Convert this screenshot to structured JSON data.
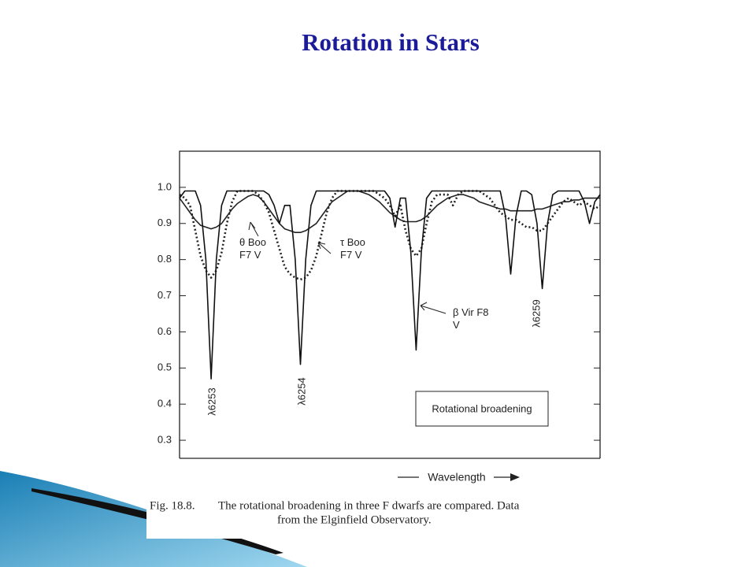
{
  "slide": {
    "title": "Rotation in Stars"
  },
  "chart_data": {
    "type": "line",
    "categories": [
      null,
      null,
      null,
      null,
      null,
      null,
      null,
      null,
      null,
      null,
      null,
      null,
      null,
      null,
      null,
      null,
      null,
      null,
      null,
      null,
      null,
      null,
      null,
      null,
      null,
      null,
      null,
      null,
      null,
      null,
      null,
      null,
      null,
      null,
      null,
      null,
      null,
      null,
      null,
      null,
      null,
      null,
      null,
      null,
      null,
      null,
      null,
      null,
      null,
      null,
      null,
      null,
      null,
      null,
      null,
      null,
      null,
      null,
      null,
      null,
      null,
      null,
      null,
      null,
      null,
      null,
      null,
      null,
      null,
      null,
      null,
      null,
      null,
      null,
      null,
      null,
      null,
      null,
      null,
      null,
      null
    ],
    "x_label": "Wavelength",
    "ylim": [
      0.25,
      1.1
    ],
    "yticks": [
      {
        "value": 1.0,
        "label": "1.0"
      },
      0.9,
      0.8,
      0.7,
      0.6,
      0.5,
      0.4,
      0.3
    ],
    "series": [
      {
        "name": "θ Boo F7 V",
        "color": "#222222",
        "style": "dotted",
        "values": [
          0.98,
          0.97,
          0.95,
          0.88,
          0.81,
          0.77,
          0.75,
          0.77,
          0.82,
          0.9,
          0.96,
          0.99,
          0.99,
          0.99,
          0.99,
          0.98,
          0.96,
          0.93,
          0.88,
          0.83,
          0.78,
          0.76,
          0.75,
          0.745,
          0.75,
          0.77,
          0.81,
          0.87,
          0.93,
          0.97,
          0.99,
          0.99,
          0.99,
          0.99,
          0.99,
          0.99,
          0.99,
          0.99,
          0.98,
          0.97,
          0.95,
          0.92,
          0.95,
          0.88,
          0.83,
          0.81,
          0.83,
          0.9,
          0.96,
          0.98,
          0.98,
          0.98,
          0.95,
          0.98,
          0.99,
          0.99,
          0.99,
          0.99,
          0.98,
          0.97,
          0.95,
          0.93,
          0.92,
          0.91,
          0.91,
          0.9,
          0.89,
          0.89,
          0.88,
          0.88,
          0.9,
          0.92,
          0.94,
          0.96,
          0.97,
          0.96,
          0.95,
          0.96,
          0.95,
          0.94,
          0.95
        ]
      },
      {
        "name": "τ Boo F7 V",
        "color": "#222222",
        "style": "solid",
        "values": [
          0.97,
          0.95,
          0.93,
          0.91,
          0.895,
          0.89,
          0.885,
          0.89,
          0.9,
          0.92,
          0.94,
          0.955,
          0.965,
          0.975,
          0.98,
          0.975,
          0.96,
          0.94,
          0.92,
          0.9,
          0.885,
          0.88,
          0.875,
          0.875,
          0.88,
          0.89,
          0.9,
          0.92,
          0.94,
          0.96,
          0.97,
          0.98,
          0.99,
          0.99,
          0.99,
          0.985,
          0.98,
          0.97,
          0.96,
          0.945,
          0.93,
          0.92,
          0.91,
          0.905,
          0.905,
          0.905,
          0.91,
          0.92,
          0.935,
          0.95,
          0.96,
          0.97,
          0.975,
          0.98,
          0.98,
          0.975,
          0.97,
          0.96,
          0.955,
          0.95,
          0.945,
          0.94,
          0.94,
          0.935,
          0.935,
          0.935,
          0.935,
          0.935,
          0.94,
          0.94,
          0.945,
          0.95,
          0.955,
          0.96,
          0.96,
          0.965,
          0.965,
          0.97,
          0.97,
          0.97,
          0.97
        ]
      },
      {
        "name": "β Vir F8 V",
        "color": "#111111",
        "style": "solid",
        "values": [
          0.97,
          0.99,
          0.99,
          0.99,
          0.95,
          0.8,
          0.47,
          0.8,
          0.95,
          0.99,
          0.99,
          0.99,
          0.99,
          0.99,
          0.99,
          0.99,
          0.99,
          0.98,
          0.95,
          0.9,
          0.95,
          0.95,
          0.8,
          0.51,
          0.8,
          0.95,
          0.99,
          0.99,
          0.99,
          0.99,
          0.99,
          0.99,
          0.99,
          0.99,
          0.99,
          0.99,
          0.99,
          0.99,
          0.99,
          0.99,
          0.97,
          0.89,
          0.97,
          0.97,
          0.82,
          0.55,
          0.82,
          0.97,
          0.99,
          0.99,
          0.99,
          0.99,
          0.99,
          0.99,
          0.99,
          0.99,
          0.99,
          0.99,
          0.99,
          0.99,
          0.99,
          0.99,
          0.92,
          0.76,
          0.92,
          0.99,
          0.99,
          0.98,
          0.9,
          0.72,
          0.9,
          0.98,
          0.99,
          0.99,
          0.99,
          0.99,
          0.99,
          0.96,
          0.9,
          0.96,
          0.98
        ]
      }
    ],
    "annotations": [
      "λ6253",
      "λ6254",
      "λ6259",
      "Rotational broadening"
    ]
  },
  "figure_caption": [
    "Fig. 18.8.",
    "The rotational broadening in three F dwarfs are compared. Data",
    "from the Elginfield Observatory."
  ]
}
